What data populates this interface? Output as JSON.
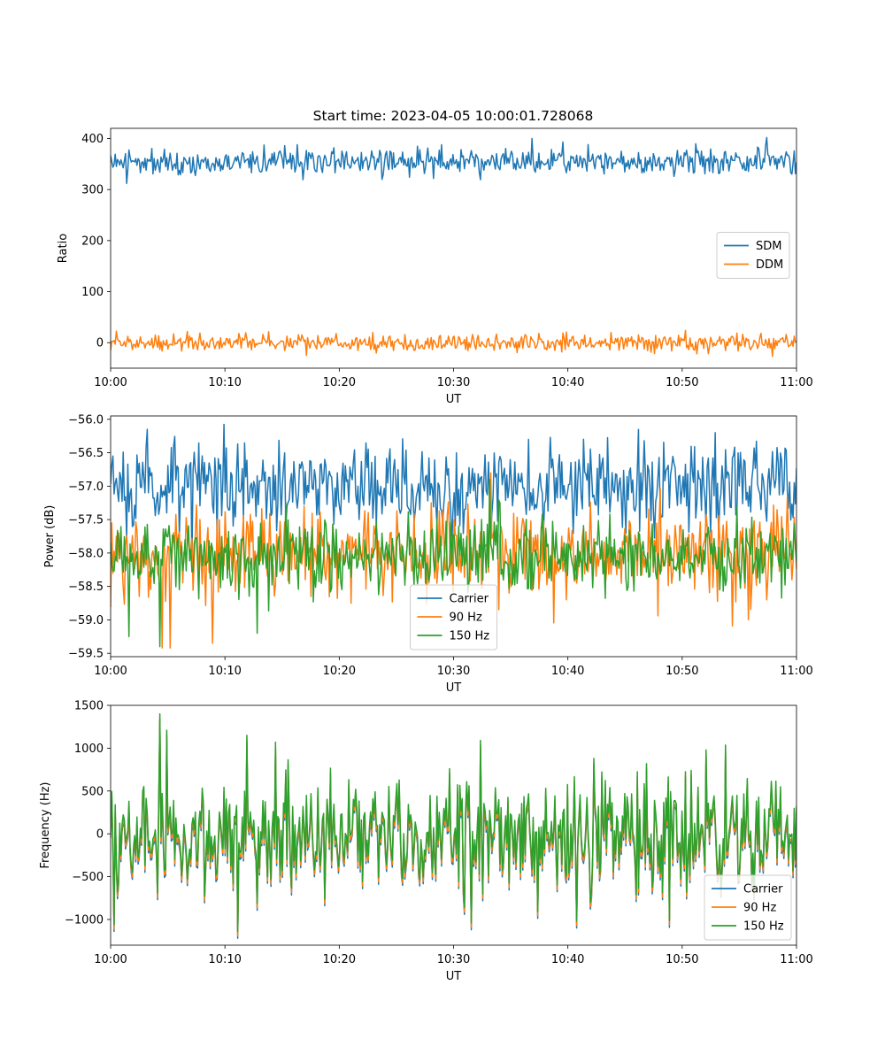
{
  "title": "Start time: 2023-04-05 10:00:01.728068",
  "colors": {
    "blue": "#1f77b4",
    "orange": "#ff7f0e",
    "green": "#2ca02c",
    "axis": "#000000",
    "legend_border": "#cccccc"
  },
  "chart_data": [
    {
      "type": "line",
      "xlabel": "UT",
      "ylabel": "Ratio",
      "xlim": [
        "10:00",
        "11:00"
      ],
      "ylim": [
        -50,
        420
      ],
      "xticks": [
        "10:00",
        "10:10",
        "10:20",
        "10:30",
        "10:40",
        "10:50",
        "11:00"
      ],
      "yticks": [
        0,
        100,
        200,
        300,
        400
      ],
      "ytick_labels": [
        "0",
        "100",
        "200",
        "300",
        "400"
      ],
      "legend_position": "center-right",
      "grid": false,
      "x": {
        "start": "10:00",
        "end": "11:00",
        "count": 600
      },
      "series": [
        {
          "name": "SDM",
          "color": "#1f77b4",
          "mean": 355,
          "std": 13,
          "seed": 11,
          "spikes": [
            [
              0.024,
              312
            ],
            [
              0.614,
              400
            ],
            [
              0.957,
              402
            ],
            [
              0.395,
              320
            ]
          ]
        },
        {
          "name": "DDM",
          "color": "#ff7f0e",
          "mean": 0,
          "std": 8,
          "seed": 23,
          "spikes": [
            [
              0.286,
              -25
            ],
            [
              0.965,
              -27
            ],
            [
              0.382,
              20
            ]
          ]
        }
      ]
    },
    {
      "type": "line",
      "xlabel": "UT",
      "ylabel": "Power (dB)",
      "xlim": [
        "10:00",
        "11:00"
      ],
      "ylim": [
        -59.55,
        -55.95
      ],
      "xticks": [
        "10:00",
        "10:10",
        "10:20",
        "10:30",
        "10:40",
        "10:50",
        "11:00"
      ],
      "yticks": [
        -59.5,
        -59.0,
        -58.5,
        -58.0,
        -57.5,
        -57.0,
        -56.5,
        -56.0
      ],
      "ytick_labels": [
        "−59.5",
        "−59.0",
        "−58.5",
        "−58.0",
        "−57.5",
        "−57.0",
        "−56.5",
        "−56.0"
      ],
      "legend_position": "bottom-center",
      "grid": false,
      "x": {
        "start": "10:00",
        "end": "11:00",
        "count": 600
      },
      "series": [
        {
          "name": "Carrier",
          "color": "#1f77b4",
          "mean": -57.0,
          "std": 0.33,
          "seed": 37,
          "spikes": [
            [
              0.053,
              -56.15
            ],
            [
              0.881,
              -56.2
            ],
            [
              0.101,
              -57.75
            ],
            [
              0.61,
              -56.3
            ]
          ]
        },
        {
          "name": "90 Hz",
          "color": "#ff7f0e",
          "mean": -58.0,
          "std": 0.33,
          "seed": 51,
          "spikes": [
            [
              0.075,
              -59.42
            ],
            [
              0.087,
              -59.42
            ],
            [
              0.148,
              -59.35
            ],
            [
              0.555,
              -56.8
            ],
            [
              0.957,
              -58.7
            ]
          ]
        },
        {
          "name": "150 Hz",
          "color": "#2ca02c",
          "mean": -58.05,
          "std": 0.28,
          "seed": 67,
          "spikes": [
            [
              0.072,
              -59.4
            ],
            [
              0.026,
              -59.25
            ],
            [
              0.214,
              -59.2
            ],
            [
              0.553,
              -56.9
            ],
            [
              0.914,
              -57.3
            ]
          ]
        }
      ]
    },
    {
      "type": "line",
      "xlabel": "UT",
      "ylabel": "Frequency (Hz)",
      "xlim": [
        "10:00",
        "11:00"
      ],
      "ylim": [
        -1300,
        1500
      ],
      "xticks": [
        "10:00",
        "10:10",
        "10:20",
        "10:30",
        "10:40",
        "10:50",
        "11:00"
      ],
      "yticks": [
        -1000,
        -500,
        0,
        500,
        1000,
        1500
      ],
      "ytick_labels": [
        "−1000",
        "−500",
        "0",
        "500",
        "1000",
        "1500"
      ],
      "legend_position": "bottom-right",
      "grid": false,
      "x": {
        "start": "10:00",
        "end": "11:00",
        "count": 600
      },
      "base": {
        "mean": 0,
        "std": 330,
        "seed": 89,
        "spikes": [
          [
            0.071,
            1380
          ],
          [
            0.081,
            1190
          ],
          [
            0.198,
            1130
          ],
          [
            0.241,
            1050
          ],
          [
            0.54,
            1070
          ],
          [
            0.868,
            960
          ],
          [
            0.005,
            -1080
          ],
          [
            0.185,
            -1160
          ],
          [
            0.526,
            -1060
          ],
          [
            0.68,
            -1040
          ],
          [
            0.313,
            -780
          ],
          [
            0.84,
            -700
          ]
        ]
      },
      "series": [
        {
          "name": "Carrier",
          "color": "#1f77b4",
          "offset": -60,
          "scale": 1.0
        },
        {
          "name": "90 Hz",
          "color": "#ff7f0e",
          "offset": -30,
          "scale": 1.0
        },
        {
          "name": "150 Hz",
          "color": "#2ca02c",
          "offset": 20,
          "scale": 1.0
        }
      ]
    }
  ]
}
